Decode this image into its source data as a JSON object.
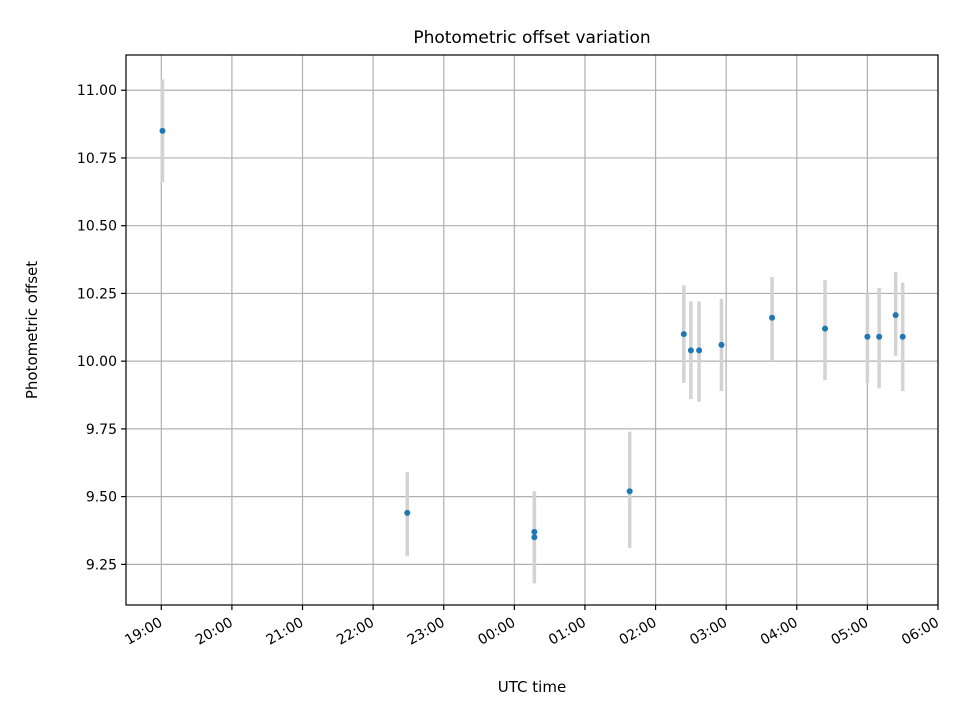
{
  "chart_data": {
    "type": "scatter",
    "title": "Photometric offset variation",
    "xlabel": "UTC time",
    "ylabel": "Photometric offset",
    "grid": true,
    "xlim": [
      "18:30",
      "06:00"
    ],
    "ylim": [
      9.1,
      11.13
    ],
    "x_ticks": [
      "19:00",
      "20:00",
      "21:00",
      "22:00",
      "23:00",
      "00:00",
      "01:00",
      "02:00",
      "03:00",
      "04:00",
      "05:00",
      "06:00"
    ],
    "y_ticks": [
      "9.25",
      "9.50",
      "9.75",
      "10.00",
      "10.25",
      "10.50",
      "10.75",
      "11.00"
    ],
    "colors": {
      "point": "#1f77b4",
      "errorbar": "#d3d3d3"
    },
    "points": [
      {
        "x": "19:01",
        "y": 10.85,
        "yerr_low": 10.66,
        "yerr_high": 11.04
      },
      {
        "x": "22:29",
        "y": 9.44,
        "yerr_low": 9.28,
        "yerr_high": 9.59
      },
      {
        "x": "00:17",
        "y": 9.37,
        "yerr_low": 9.22,
        "yerr_high": 9.52
      },
      {
        "x": "00:17",
        "y": 9.35,
        "yerr_low": 9.18,
        "yerr_high": 9.51
      },
      {
        "x": "01:38",
        "y": 9.52,
        "yerr_low": 9.31,
        "yerr_high": 9.74
      },
      {
        "x": "02:24",
        "y": 10.1,
        "yerr_low": 9.92,
        "yerr_high": 10.28
      },
      {
        "x": "02:30",
        "y": 10.04,
        "yerr_low": 9.86,
        "yerr_high": 10.22
      },
      {
        "x": "02:37",
        "y": 10.04,
        "yerr_low": 9.85,
        "yerr_high": 10.22
      },
      {
        "x": "02:56",
        "y": 10.06,
        "yerr_low": 9.89,
        "yerr_high": 10.23
      },
      {
        "x": "03:39",
        "y": 10.16,
        "yerr_low": 10.0,
        "yerr_high": 10.31
      },
      {
        "x": "04:24",
        "y": 10.12,
        "yerr_low": 9.93,
        "yerr_high": 10.3
      },
      {
        "x": "05:00",
        "y": 10.09,
        "yerr_low": 9.92,
        "yerr_high": 10.25
      },
      {
        "x": "05:10",
        "y": 10.09,
        "yerr_low": 9.9,
        "yerr_high": 10.27
      },
      {
        "x": "05:24",
        "y": 10.17,
        "yerr_low": 10.02,
        "yerr_high": 10.33
      },
      {
        "x": "05:30",
        "y": 10.09,
        "yerr_low": 9.89,
        "yerr_high": 10.29
      }
    ]
  }
}
